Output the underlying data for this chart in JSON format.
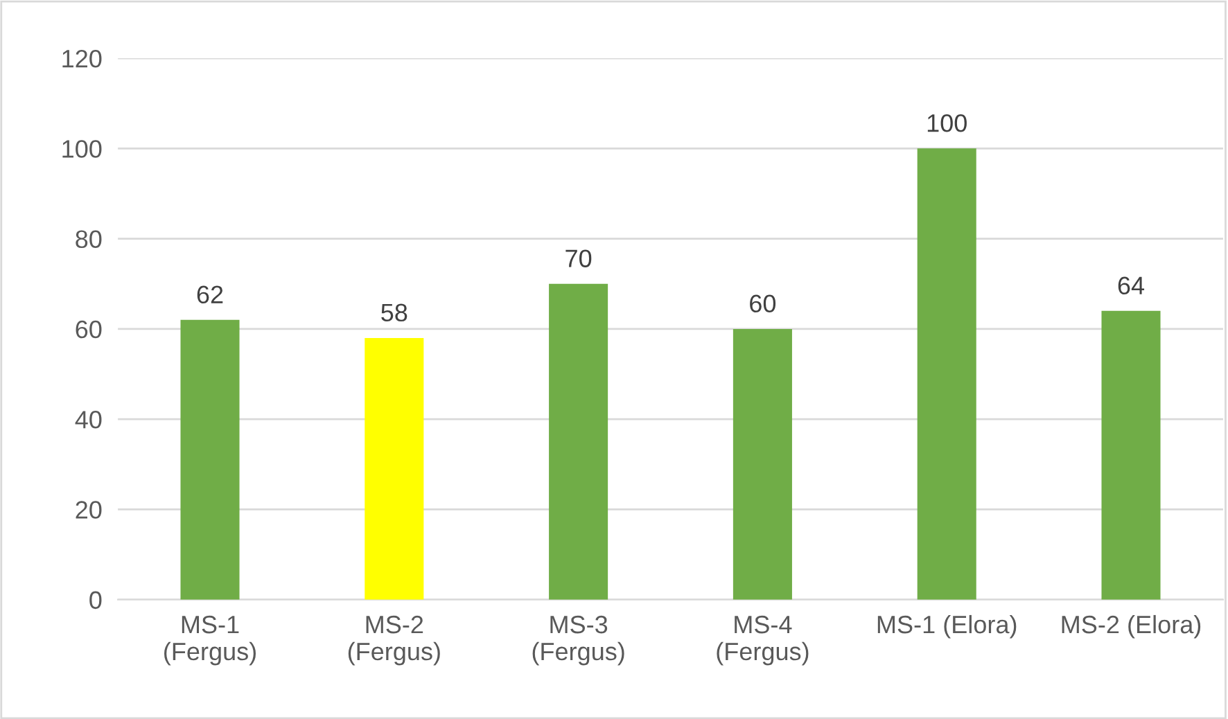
{
  "chart_data": {
    "type": "bar",
    "categories": [
      "MS-1\n(Fergus)",
      "MS-2\n(Fergus)",
      "MS-3\n(Fergus)",
      "MS-4\n(Fergus)",
      "MS-1 (Elora)",
      "MS-2 (Elora)"
    ],
    "values": [
      62,
      58,
      70,
      60,
      100,
      64
    ],
    "colors": [
      "#70ad47",
      "#ffff00",
      "#70ad47",
      "#70ad47",
      "#70ad47",
      "#70ad47"
    ],
    "ylim": [
      0,
      120
    ],
    "yticks": [
      0,
      20,
      40,
      60,
      80,
      100,
      120
    ],
    "grid": "y",
    "data_labels": true
  }
}
